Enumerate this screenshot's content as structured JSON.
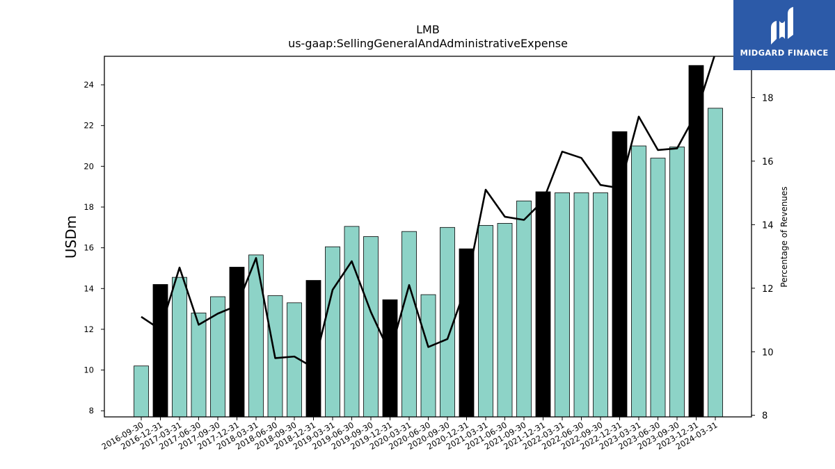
{
  "logo": {
    "text": "MIDGARD FINANCE",
    "icon": "midgard-logo-icon",
    "bg_color": "#2c5aa8"
  },
  "chart_data": {
    "type": "bar",
    "title": "LMB",
    "subtitle": "us-gaap:SellingGeneralAndAdministrativeExpense",
    "ylabel": "USDm",
    "y2label": "Percentage of Revenues",
    "ylim": [
      7.7,
      25.4
    ],
    "y2lim": [
      7.95,
      19.3
    ],
    "yticks": [
      8,
      10,
      12,
      14,
      16,
      18,
      20,
      22,
      24
    ],
    "y2ticks": [
      8,
      10,
      12,
      14,
      16,
      18
    ],
    "colors": {
      "quarter": "#8dd3c7",
      "year_end": "#000000",
      "line": "#000000"
    },
    "categories": [
      "2016-09-30",
      "2016-12-31",
      "2017-03-31",
      "2017-06-30",
      "2017-09-30",
      "2017-12-31",
      "2018-03-31",
      "2018-06-30",
      "2018-09-30",
      "2018-12-31",
      "2019-03-31",
      "2019-06-30",
      "2019-09-30",
      "2019-12-31",
      "2020-03-31",
      "2020-06-30",
      "2020-09-30",
      "2020-12-31",
      "2021-03-31",
      "2021-06-30",
      "2021-09-30",
      "2021-12-31",
      "2022-03-31",
      "2022-06-30",
      "2022-09-30",
      "2022-12-31",
      "2023-03-31",
      "2023-06-30",
      "2023-09-30",
      "2023-12-31",
      "2024-03-31"
    ],
    "series": [
      {
        "type": "bar",
        "axis": "left",
        "values": [
          10.2,
          14.2,
          14.55,
          12.8,
          13.6,
          15.05,
          15.65,
          13.65,
          13.3,
          14.4,
          16.05,
          17.05,
          16.55,
          13.45,
          16.8,
          13.7,
          17.0,
          15.95,
          17.1,
          17.2,
          18.3,
          18.75,
          18.7,
          18.7,
          18.7,
          21.7,
          21.0,
          20.4,
          20.95,
          24.95,
          22.85
        ],
        "year_end": [
          false,
          true,
          false,
          false,
          false,
          true,
          false,
          false,
          false,
          true,
          false,
          false,
          false,
          true,
          false,
          false,
          false,
          true,
          false,
          false,
          false,
          true,
          false,
          false,
          false,
          true,
          false,
          false,
          false,
          true,
          false
        ]
      },
      {
        "type": "line",
        "axis": "right",
        "values": [
          11.1,
          10.7,
          12.65,
          10.85,
          11.2,
          11.45,
          12.95,
          9.8,
          9.85,
          9.5,
          11.95,
          12.85,
          11.25,
          9.95,
          12.1,
          10.15,
          10.4,
          12.1,
          15.1,
          14.25,
          14.15,
          14.75,
          16.3,
          16.1,
          15.25,
          15.15,
          17.4,
          16.35,
          16.4,
          17.5,
          19.4
        ]
      }
    ]
  }
}
